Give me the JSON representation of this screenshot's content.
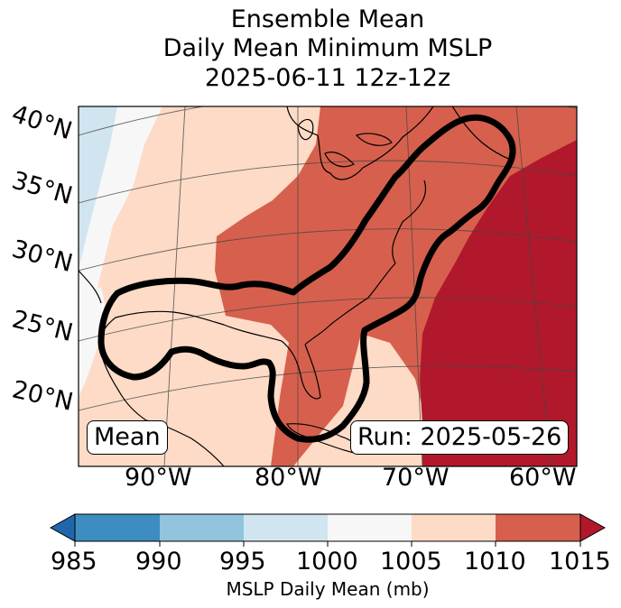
{
  "title": {
    "line1": "Ensemble Mean",
    "line2": "Daily Mean Minimum MSLP",
    "line3": "2025-06-11 12z-12z"
  },
  "map": {
    "region": "Gulf of Mexico and US East Coast",
    "lat_labels": [
      "40°N",
      "35°N",
      "30°N",
      "25°N",
      "20°N"
    ],
    "lon_labels": [
      "90°W",
      "80°W",
      "70°W",
      "60°W"
    ],
    "overlay_contour": "thick black outline of ensemble area"
  },
  "boxes": {
    "left": "Mean",
    "right": "Run: 2025-05-26"
  },
  "colorbar": {
    "title": "MSLP Daily Mean (mb)",
    "ticks": [
      "985",
      "990",
      "995",
      "1000",
      "1005",
      "1010",
      "1015"
    ],
    "colors": [
      "#2166ac",
      "#3d8dc1",
      "#92c4de",
      "#d1e5f0",
      "#f7f7f7",
      "#fddbc7",
      "#d6604d",
      "#b2182b"
    ],
    "extend": "both"
  }
}
